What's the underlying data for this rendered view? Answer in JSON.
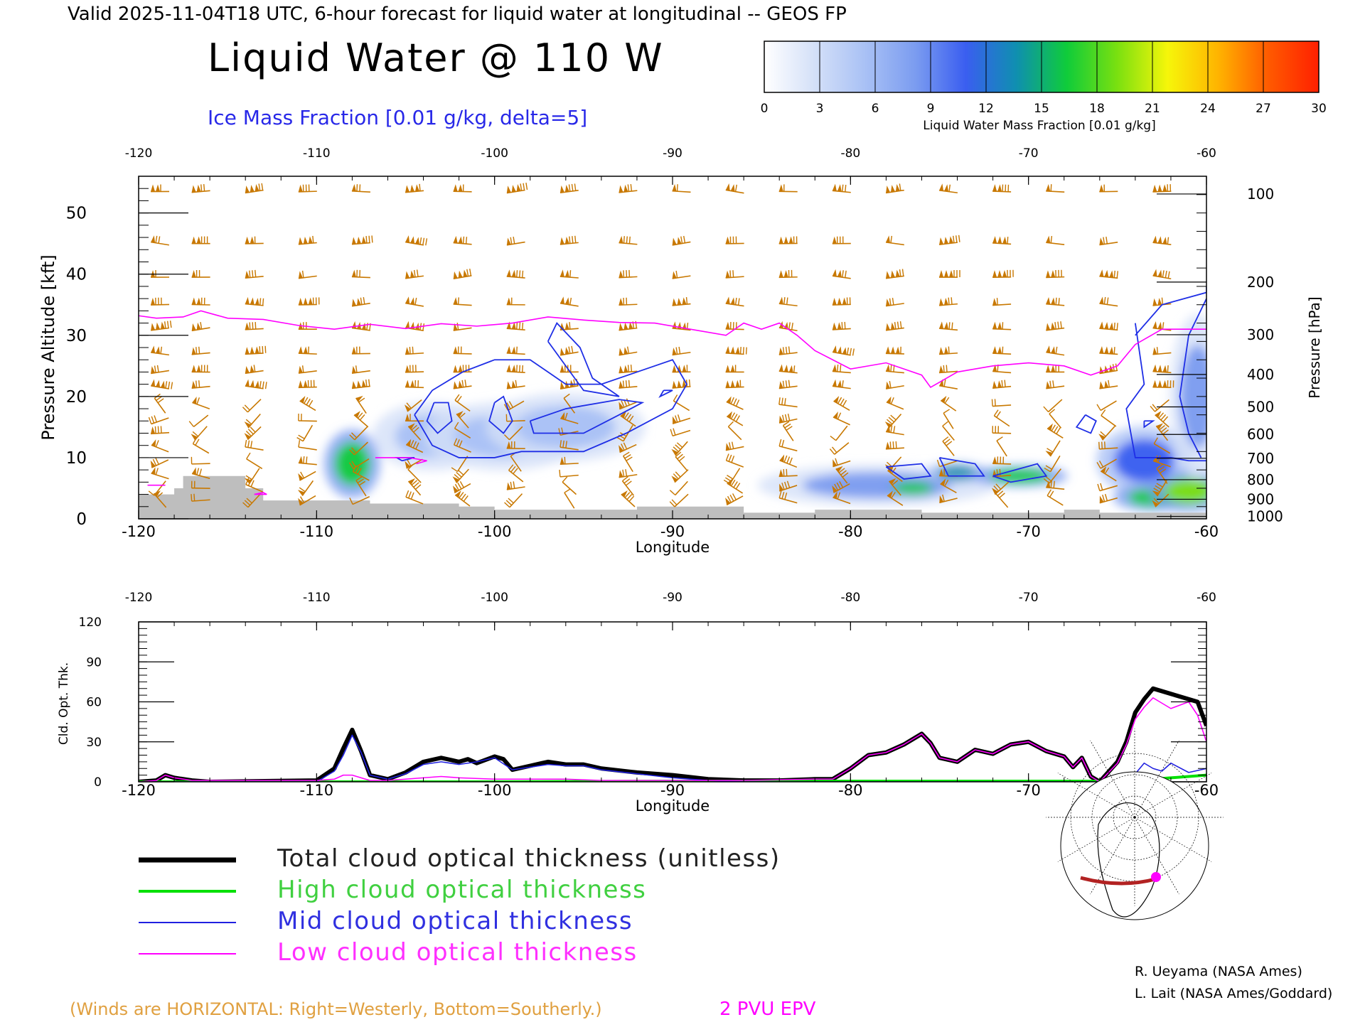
{
  "header": {
    "valid_line": "Valid 2025-11-04T18 UTC, 6-hour forecast for liquid water at longitudinal -- GEOS FP",
    "main_title": "Liquid Water @ 110 W",
    "ice_label": "Ice Mass Fraction [0.01 g/kg, delta=5]"
  },
  "colorbar": {
    "ticks": [
      "0",
      "3",
      "6",
      "9",
      "12",
      "15",
      "18",
      "21",
      "24",
      "27",
      "30"
    ],
    "label": "Liquid Water Mass Fraction [0.01 g/kg]",
    "colors": [
      "#ffffff",
      "#d4e0f8",
      "#a9c1f5",
      "#7b9cf0",
      "#3a5ef0",
      "#0f8fb0",
      "#0fcc3a",
      "#7ae010",
      "#f6f60a",
      "#ffb400",
      "#ff5a00",
      "#ff2000"
    ]
  },
  "chart_data": [
    {
      "type": "heatmap",
      "title": "Liquid Water @ 110 W",
      "xlabel": "Longitude",
      "ylabel": "Pressure Altitude [kft]",
      "ylabel_right": "Pressure [hPa]",
      "xlim": [
        -120,
        -60
      ],
      "ylim": [
        0,
        56
      ],
      "x_ticks": [
        "-120",
        "-110",
        "-100",
        "-90",
        "-80",
        "-70",
        "-60"
      ],
      "y_ticks": [
        "0",
        "10",
        "20",
        "30",
        "40",
        "50"
      ],
      "pressure_ticks": [
        "100",
        "200",
        "300",
        "400",
        "500",
        "600",
        "700",
        "800",
        "900",
        "1000"
      ],
      "pressure_tick_kft": [
        53.1,
        38.7,
        30.1,
        23.6,
        18.3,
        13.8,
        9.9,
        6.4,
        3.2,
        0.4
      ],
      "colorscale_max": 30,
      "liquid_water_blobs": [
        {
          "lon": -108,
          "kft": 9,
          "value": 17,
          "spread_lon": 0.7,
          "spread_kft": 2.5
        },
        {
          "lon": -103.5,
          "kft": 13.5,
          "value": 6,
          "spread_lon": 1.5,
          "spread_kft": 2.5
        },
        {
          "lon": -99.5,
          "kft": 13.5,
          "value": 6,
          "spread_lon": 2,
          "spread_kft": 2.5
        },
        {
          "lon": -96,
          "kft": 15,
          "value": 5,
          "spread_lon": 2,
          "spread_kft": 2.5
        },
        {
          "lon": -78.5,
          "kft": 5.5,
          "value": 9,
          "spread_lon": 3,
          "spread_kft": 1.5
        },
        {
          "lon": -76.5,
          "kft": 5,
          "value": 16,
          "spread_lon": 0.8,
          "spread_kft": 0.7
        },
        {
          "lon": -74,
          "kft": 7.5,
          "value": 14,
          "spread_lon": 0.8,
          "spread_kft": 0.8
        },
        {
          "lon": -70.5,
          "kft": 7,
          "value": 17,
          "spread_lon": 1.2,
          "spread_kft": 0.8
        },
        {
          "lon": -63.5,
          "kft": 9.5,
          "value": 12,
          "spread_lon": 1.2,
          "spread_kft": 2.5
        },
        {
          "lon": -63,
          "kft": 3.5,
          "value": 17,
          "spread_lon": 1,
          "spread_kft": 1
        },
        {
          "lon": -61,
          "kft": 4.5,
          "value": 20,
          "spread_lon": 1,
          "spread_kft": 1.5
        },
        {
          "lon": -60.5,
          "kft": 20,
          "value": 8,
          "spread_lon": 0.7,
          "spread_kft": 6
        }
      ],
      "ice_contours": [
        {
          "lon": [
            -104.5,
            -103.5,
            -101.8,
            -100,
            -98,
            -97,
            -96,
            -94,
            -92,
            -90,
            -90,
            -89.2,
            -90,
            -92.6,
            -95,
            -97,
            -98.5,
            -100,
            -102,
            -103.5,
            -104.5
          ],
          "kft": [
            17,
            21,
            24,
            26,
            26,
            24,
            22,
            22,
            24,
            26,
            26,
            22,
            18,
            14,
            11,
            11,
            11,
            10,
            10,
            12,
            17
          ]
        },
        {
          "lon": [
            -97,
            -96.5,
            -95.2,
            -94.5,
            -93,
            -95,
            -97
          ],
          "kft": [
            29,
            32,
            28,
            23,
            20,
            21,
            29
          ]
        },
        {
          "lon": [
            -103.4,
            -102.6,
            -102.4,
            -103.2,
            -103.8,
            -103.4
          ],
          "kft": [
            19,
            19,
            16,
            14,
            16,
            19
          ]
        },
        {
          "lon": [
            -100,
            -99.5,
            -99,
            -99.5,
            -100.3,
            -100
          ],
          "kft": [
            19,
            20,
            16,
            14,
            16,
            19
          ]
        },
        {
          "lon": [
            -98,
            -96,
            -93,
            -91.7,
            -93,
            -95,
            -97.8,
            -98
          ],
          "kft": [
            16,
            18,
            19.5,
            19,
            17,
            14,
            14,
            16
          ]
        },
        {
          "lon": [
            -90.5,
            -90,
            -90.7,
            -90.5
          ],
          "kft": [
            21,
            21,
            20,
            21
          ]
        },
        {
          "lon": [
            -105.2,
            -104.5,
            -105.5,
            -105.2
          ],
          "kft": [
            9.5,
            10,
            10,
            9.5
          ]
        },
        {
          "lon": [
            -78,
            -76,
            -75.5,
            -77,
            -78
          ],
          "kft": [
            8.5,
            9,
            7,
            6.5,
            8.5
          ]
        },
        {
          "lon": [
            -75,
            -73,
            -72.5,
            -74.5,
            -75
          ],
          "kft": [
            10,
            9,
            7,
            7,
            10
          ]
        },
        {
          "lon": [
            -72,
            -69.5,
            -69,
            -71,
            -72
          ],
          "kft": [
            7,
            9,
            7,
            6,
            7
          ]
        },
        {
          "lon": [
            -66.8,
            -66.2,
            -66.5,
            -67.3,
            -66.8
          ],
          "kft": [
            17,
            16,
            14,
            15,
            17
          ]
        },
        {
          "lon": [
            -64,
            -62.5,
            -60,
            -60
          ],
          "kft": [
            30,
            35,
            37,
            38
          ]
        },
        {
          "lon": [
            -60,
            -61,
            -61.5,
            -61,
            -60.3
          ],
          "kft": [
            36,
            30,
            20,
            14,
            10
          ]
        },
        {
          "lon": [
            -64,
            -63.5,
            -64.5,
            -64,
            -62,
            -61,
            -60
          ],
          "kft": [
            32,
            22,
            18,
            10,
            10,
            9.5,
            9.5
          ]
        },
        {
          "lon": [
            -63.5,
            -63,
            -63.5,
            -63.5
          ],
          "kft": [
            16,
            16,
            15,
            16
          ]
        }
      ],
      "epv_2pvu": {
        "lon": [
          -120,
          -119,
          -117.5,
          -116.5,
          -115,
          -113,
          -111,
          -109,
          -107,
          -105,
          -103,
          -101,
          -99,
          -97,
          -95,
          -93,
          -91,
          -89,
          -87,
          -86,
          -85,
          -84,
          -83,
          -82,
          -80,
          -78,
          -76,
          -75.5,
          -74,
          -72,
          -70,
          -68,
          -66.5,
          -65,
          -64,
          -62.5,
          -61,
          -60
        ],
        "kft": [
          33.2,
          32.8,
          33,
          34,
          32.8,
          32.6,
          31.6,
          31,
          31.8,
          31.1,
          31.9,
          31.5,
          32,
          33,
          32.5,
          32.1,
          32,
          31,
          30,
          32,
          31,
          32,
          30,
          27.5,
          24.5,
          25.5,
          23.5,
          21.5,
          24,
          25,
          25.5,
          25,
          23.5,
          25,
          28.5,
          31,
          31,
          31
        ]
      },
      "epv_low_segments": [
        {
          "lon": [
            -119.5,
            -118.5
          ],
          "kft": [
            5.5,
            5.5
          ]
        },
        {
          "lon": [
            -113.5,
            -113,
            -112.8,
            -113.5
          ],
          "kft": [
            4,
            4.3,
            4,
            4
          ]
        },
        {
          "lon": [
            -106.7,
            -104.8,
            -103.8,
            -104.4
          ],
          "kft": [
            10,
            10,
            9.5,
            9
          ]
        }
      ],
      "terrain": {
        "lon": [
          -120,
          -118,
          -118,
          -117.5,
          -117.5,
          -114,
          -114,
          -113,
          -113,
          -107,
          -107,
          -102,
          -102,
          -100,
          -100,
          -92,
          -92,
          -86,
          -86,
          -82,
          -82,
          -76,
          -76,
          -68,
          -68,
          -66,
          -66,
          -60
        ],
        "kft": [
          4,
          4,
          5,
          5,
          7,
          7,
          5,
          5,
          3,
          3,
          2.5,
          2.5,
          2,
          2,
          1.5,
          1.5,
          2,
          2,
          1,
          1,
          1.5,
          1.5,
          1,
          1,
          1.5,
          1.5,
          1,
          1
        ]
      },
      "wind_barb_rows_kft": [
        53.5,
        45,
        39.5,
        35,
        31,
        27,
        24,
        21.5,
        18.5,
        16,
        14,
        11.5,
        9,
        7,
        5,
        3
      ],
      "wind_barb_cols_lon": [
        -118.8,
        -116.5,
        -113.5,
        -110.5,
        -107.5,
        -104.5,
        -101.8,
        -98.8,
        -95.8,
        -92.5,
        -89.5,
        -86.5,
        -83.5,
        -80.5,
        -77.5,
        -74.5,
        -71.5,
        -68.5,
        -65.5,
        -62.5
      ]
    },
    {
      "type": "line",
      "xlabel": "Longitude",
      "ylabel": "Cld. Opt. Thk.",
      "xlim": [
        -120,
        -60
      ],
      "ylim": [
        0,
        120
      ],
      "x_ticks": [
        "-120",
        "-110",
        "-100",
        "-90",
        "-80",
        "-70",
        "-60"
      ],
      "y_ticks": [
        "0",
        "30",
        "60",
        "90",
        "120"
      ],
      "series": [
        {
          "name": "Total cloud optical thickness (unitless)",
          "color": "#000000",
          "x": [
            -120,
            -119,
            -118.5,
            -118,
            -117,
            -116,
            -110,
            -109,
            -108.5,
            -108,
            -107.5,
            -107,
            -106,
            -105,
            -104,
            -103,
            -102,
            -101.5,
            -101,
            -100,
            -99.5,
            -99,
            -98,
            -97,
            -96,
            -95,
            -94,
            -92,
            -90,
            -88,
            -86,
            -84,
            -82,
            -81,
            -80,
            -79,
            -78,
            -77,
            -76,
            -75.5,
            -75,
            -74,
            -73,
            -72,
            -71,
            -70,
            -69,
            -68,
            -67.5,
            -67,
            -66.5,
            -66,
            -65,
            -64.5,
            -64,
            -63.5,
            -63,
            -62,
            -61,
            -60.5,
            -60
          ],
          "y": [
            0,
            1,
            5,
            3,
            1,
            0,
            1,
            10,
            25,
            39,
            23,
            5,
            2,
            7,
            15,
            18,
            15,
            17,
            14,
            19,
            17,
            9,
            12,
            15,
            13,
            13,
            10,
            7,
            5,
            2,
            1,
            1,
            2,
            2,
            10,
            20,
            22,
            28,
            36,
            29,
            18,
            15,
            24,
            21,
            28,
            30,
            23,
            19,
            11,
            18,
            4,
            0,
            15,
            30,
            52,
            62,
            70,
            66,
            62,
            60,
            42
          ]
        },
        {
          "name": "High cloud optical thickness",
          "color": "#00e000",
          "x": [
            -120,
            -110,
            -100,
            -90,
            -80,
            -70,
            -66,
            -64,
            -62,
            -60
          ],
          "y": [
            0,
            0,
            0,
            0.5,
            0.5,
            0.5,
            0.5,
            1,
            3,
            5
          ]
        },
        {
          "name": "Mid cloud optical thickness",
          "color": "#2020e0",
          "x": [
            -120,
            -110,
            -109,
            -108.5,
            -108,
            -107.5,
            -107,
            -106,
            -105,
            -104,
            -103,
            -102,
            -101,
            -100,
            -99,
            -98,
            -97,
            -96,
            -95,
            -94,
            -92,
            -90,
            -88,
            -86,
            -84,
            -82,
            -81,
            -80,
            -79,
            -78,
            -77,
            -76,
            -75,
            -74,
            -73,
            -72,
            -71,
            -70,
            -69,
            -68,
            -67,
            -66,
            -65,
            -64,
            -63.5,
            -63,
            -62.5,
            -62,
            -61,
            -60
          ],
          "y": [
            0,
            0,
            8,
            20,
            35,
            22,
            5,
            2,
            6,
            13,
            15,
            13,
            15,
            18,
            9,
            11,
            13,
            12,
            12,
            9,
            6,
            3,
            1,
            0,
            0,
            0,
            0,
            0,
            0,
            0,
            0,
            0,
            0,
            0,
            0,
            0,
            0,
            0,
            0,
            0,
            0,
            0,
            1,
            6,
            14,
            10,
            8,
            14,
            7,
            10
          ]
        },
        {
          "name": "Low cloud optical thickness",
          "color": "#ff00ff",
          "x": [
            -120,
            -119,
            -118.5,
            -118,
            -117,
            -110,
            -109,
            -108.5,
            -108,
            -107.5,
            -107,
            -106,
            -105,
            -104,
            -103,
            -102,
            -100,
            -98,
            -96,
            -94,
            -92,
            -90,
            -86,
            -82,
            -81,
            -80,
            -79,
            -78,
            -77,
            -76,
            -75.5,
            -75,
            -74,
            -73,
            -72,
            -71,
            -70,
            -69,
            -68,
            -67.5,
            -67,
            -66.5,
            -66,
            -65,
            -64.5,
            -64,
            -63.5,
            -63,
            -62,
            -61,
            -60.5,
            -60
          ],
          "y": [
            0,
            1,
            5,
            3,
            1,
            1,
            2,
            5,
            5,
            3,
            1,
            1,
            2,
            3,
            4,
            3,
            2,
            2,
            2,
            1,
            1,
            1,
            1,
            2,
            2,
            10,
            20,
            22,
            28,
            36,
            29,
            18,
            15,
            24,
            21,
            28,
            30,
            23,
            19,
            11,
            18,
            4,
            0,
            14,
            28,
            47,
            56,
            63,
            55,
            60,
            50,
            30
          ]
        }
      ]
    }
  ],
  "legend": {
    "items": [
      {
        "label": "Total cloud optical thickness (unitless)",
        "color": "#000000"
      },
      {
        "label": "High cloud optical thickness",
        "color": "#00e000"
      },
      {
        "label": "Mid cloud optical thickness",
        "color": "#2020e0"
      },
      {
        "label": "Low cloud optical thickness",
        "color": "#ff00ff"
      }
    ]
  },
  "footer": {
    "winds_note": "(Winds are HORIZONTAL: Right=Westerly, Bottom=Southerly.)",
    "epv_label": "2 PVU EPV",
    "credit_1": "R. Ueyama (NASA Ames)",
    "credit_2": "L. Lait (NASA Ames/Goddard)"
  },
  "map_inset": {
    "description_icon": "north-polar-map-icon",
    "section_color": "#b22222",
    "marker_color": "#ff00ff"
  }
}
